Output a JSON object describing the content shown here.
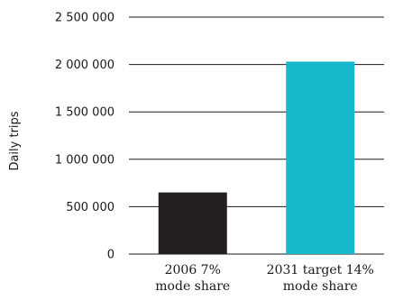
{
  "chart_data": {
    "type": "bar",
    "categories": [
      [
        "2006 7%",
        "mode share"
      ],
      [
        "2031 target 14%",
        "mode share"
      ]
    ],
    "values": [
      650000,
      2030000
    ],
    "colors": [
      "#231f20",
      "#16b9cc"
    ],
    "ylabel": "Daily trips",
    "ylim": [
      0,
      2500000
    ],
    "yticks": [
      {
        "value": 0,
        "label": "0"
      },
      {
        "value": 500000,
        "label": "500 000"
      },
      {
        "value": 1000000,
        "label": "1 000 000"
      },
      {
        "value": 1500000,
        "label": "1 500 000"
      },
      {
        "value": 2000000,
        "label": "2 000 000"
      },
      {
        "value": 2500000,
        "label": "2 500 000"
      }
    ],
    "grid": true
  }
}
